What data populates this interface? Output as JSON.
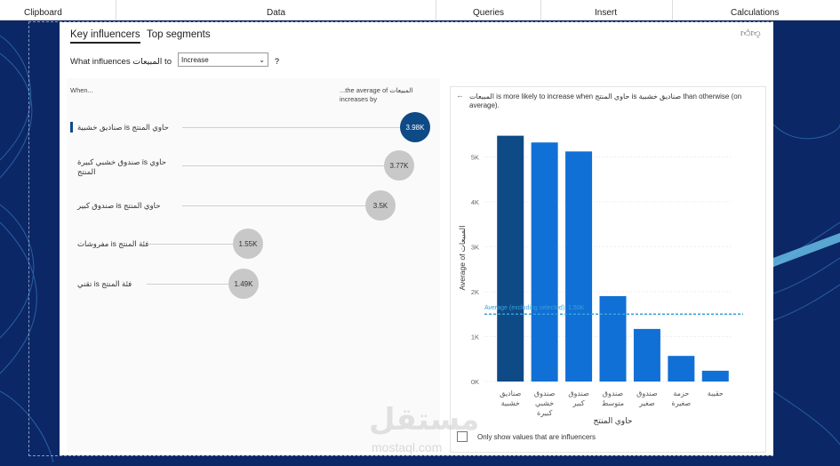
{
  "ribbon": {
    "groups": [
      "Clipboard",
      "Data",
      "Queries",
      "Insert",
      "Calculations"
    ]
  },
  "visual": {
    "tabs": [
      "Key influencers",
      "Top segments"
    ],
    "question": {
      "prefix": "What influences المبيعات to",
      "dropdown": "Increase",
      "help": "?"
    },
    "list_header": {
      "left": "When...",
      "right": "...the average of المبيعات increases by"
    },
    "influencers": [
      {
        "label": "صناديق خشبية is حاوي المنتج",
        "value": "3.98K"
      },
      {
        "label": "صندوق خشبي كبيرة is حاوي المنتج",
        "value": "3.77K"
      },
      {
        "label": "صندوق كبير is حاوي المنتج",
        "value": "3.5K"
      },
      {
        "label": "مفروشات is فئة المنتج",
        "value": "1.55K"
      },
      {
        "label": "تقني is فئة المنتج",
        "value": "1.49K"
      }
    ],
    "detail_header": "المبيعات is more likely to increase when حاوي المنتج is صناديق خشبية than otherwise (on average).",
    "checkbox": "Only show values that are influencers"
  },
  "chart_data": {
    "type": "bar",
    "x_label": "حاوي المنتج",
    "y_label": "Average of المبيعات",
    "categories": [
      "صناديق خشبية",
      "صندوق خشبي كبيرة",
      "صندوق كبير",
      "صندوق متوسط",
      "صندوق صغير",
      "حزمة صغيرة",
      "حقيبة"
    ],
    "values": [
      5470,
      5320,
      5120,
      1900,
      1170,
      570,
      240
    ],
    "color": "#1170d6",
    "highlight_color": "#0e4a86",
    "highlight_index": 0,
    "ylim": [
      0,
      5700
    ],
    "yticks": [
      {
        "value": 0,
        "label": "0K"
      },
      {
        "value": 1000,
        "label": "1K"
      },
      {
        "value": 2000,
        "label": "2K"
      },
      {
        "value": 3000,
        "label": "3K"
      },
      {
        "value": 4000,
        "label": "4K"
      },
      {
        "value": 5000,
        "label": "5K"
      }
    ],
    "grid": true,
    "reference_line": {
      "value": 1500,
      "label": "Average (excluding selected): 1.50K",
      "color": "#3aa0d8"
    }
  },
  "watermark": {
    "logo": "مستقل",
    "site": "mostaql.com"
  }
}
